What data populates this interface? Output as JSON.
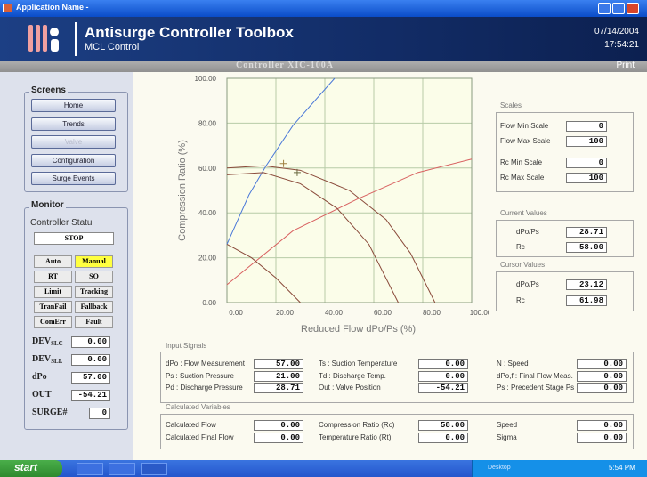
{
  "window": {
    "title": "Application Name -"
  },
  "header": {
    "title": "Antisurge Controller Toolbox",
    "subtitle": "MCL Control",
    "date": "07/14/2004",
    "time": "17:54:21"
  },
  "toolbar": {
    "controller": "Controller  XIC-100A",
    "print": "Print"
  },
  "screens": {
    "title": "Screens",
    "buttons": [
      {
        "label": "Home",
        "enabled": true
      },
      {
        "label": "Trends",
        "enabled": true
      },
      {
        "label": "Valve",
        "enabled": false
      },
      {
        "label": "Configuration",
        "enabled": true
      },
      {
        "label": "Surge Events",
        "enabled": true
      }
    ]
  },
  "monitor": {
    "title": "Monitor",
    "status_label": "Controller Statu",
    "status": "STOP",
    "flags": [
      [
        {
          "label": "Auto",
          "on": false
        },
        {
          "label": "Manual",
          "on": true
        }
      ],
      [
        {
          "label": "RT",
          "on": false
        },
        {
          "label": "SO",
          "on": false
        }
      ],
      [
        {
          "label": "Limit",
          "on": false
        },
        {
          "label": "Tracking",
          "on": false
        }
      ],
      [
        {
          "label": "TranFail",
          "on": false
        },
        {
          "label": "Fallback",
          "on": false
        }
      ],
      [
        {
          "label": "ComErr",
          "on": false
        },
        {
          "label": "Fault",
          "on": false
        }
      ]
    ],
    "readings": [
      {
        "label": "DEV",
        "sub": "SLC",
        "value": "0.00"
      },
      {
        "label": "DEV",
        "sub": "SLL",
        "value": "0.00"
      },
      {
        "label": "dPo",
        "value": "57.00"
      },
      {
        "label": "OUT",
        "value": "-54.21"
      },
      {
        "label": "SURGE#",
        "value": "0"
      }
    ]
  },
  "chart_data": {
    "type": "line",
    "xlabel": "Reduced Flow dPo/Ps (%)",
    "ylabel": "Compression Ratio (%)",
    "xlim": [
      0,
      100
    ],
    "ylim": [
      0,
      100
    ],
    "xticks": [
      {
        "value": 0,
        "label": "0.00"
      },
      {
        "value": 20,
        "label": "20.00"
      },
      {
        "value": 40,
        "label": "40.00"
      },
      {
        "value": 60,
        "label": "60.00"
      },
      {
        "value": 80,
        "label": "80.00"
      },
      {
        "value": 100,
        "label": "100.00"
      }
    ],
    "yticks": [
      {
        "value": 0,
        "label": "0.00"
      },
      {
        "value": 20,
        "label": "20.00"
      },
      {
        "value": 40,
        "label": "40.00"
      },
      {
        "value": 60,
        "label": "60.00"
      },
      {
        "value": 80,
        "label": "80.00"
      },
      {
        "value": 100,
        "label": "100.00"
      }
    ],
    "grid": true,
    "series": [
      {
        "color": "#4a78d8",
        "x": [
          0,
          9,
          16,
          27,
          44
        ],
        "values": [
          26,
          48,
          61,
          79,
          100
        ]
      },
      {
        "color": "#d86060",
        "x": [
          0,
          27,
          53,
          78,
          100
        ],
        "values": [
          8,
          32,
          46,
          58,
          64
        ]
      },
      {
        "color": "#8a4a3a",
        "x": [
          0,
          15,
          30,
          50,
          65,
          75,
          85
        ],
        "values": [
          60,
          61,
          59,
          50,
          37,
          22,
          0
        ]
      },
      {
        "color": "#8a4a3a",
        "x": [
          0,
          15,
          30,
          45,
          58,
          70
        ],
        "values": [
          57,
          58,
          53,
          42,
          26,
          0
        ]
      },
      {
        "color": "#8a4a3a",
        "x": [
          0,
          10,
          20,
          30
        ],
        "values": [
          26,
          20,
          11,
          0
        ]
      }
    ],
    "points": [
      {
        "x": 23.12,
        "y": 61.98,
        "color": "#a08040"
      },
      {
        "x": 28.71,
        "y": 58.0,
        "color": "#6a6a40"
      }
    ]
  },
  "scales": {
    "title": "Scales",
    "rows": [
      [
        "Flow Min Scale",
        "0"
      ],
      [
        "Flow Max Scale",
        "100"
      ],
      [
        "Rc Min Scale",
        "0"
      ],
      [
        "Rc Max Scale",
        "100"
      ]
    ]
  },
  "current": {
    "title": "Current Values",
    "rows": [
      [
        "dPo/Ps",
        "28.71"
      ],
      [
        "Rc",
        "58.00"
      ]
    ]
  },
  "cursor": {
    "title": "Cursor Values",
    "rows": [
      [
        "dPo/Ps",
        "23.12"
      ],
      [
        "Rc",
        "61.98"
      ]
    ]
  },
  "inputs": {
    "title": "Input Signals",
    "rows": [
      [
        [
          "dPo : Flow Measurement",
          "57.00"
        ],
        [
          "Ts : Suction Temperature",
          "0.00"
        ],
        [
          "N : Speed",
          "0.00"
        ]
      ],
      [
        [
          "Ps : Suction Pressure",
          "21.00"
        ],
        [
          "Td : Discharge Temp.",
          "0.00"
        ],
        [
          "dPo,f : Final Flow Meas.",
          "0.00"
        ]
      ],
      [
        [
          "Pd : Discharge Pressure",
          "28.71"
        ],
        [
          "Out : Valve Position",
          "-54.21"
        ],
        [
          "Ps : Precedent Stage Ps",
          "0.00"
        ]
      ]
    ]
  },
  "calculated": {
    "title": "Calculated Variables",
    "rows": [
      [
        [
          "Calculated Flow",
          "0.00"
        ],
        [
          "Compression Ratio (Rc)",
          "58.00"
        ],
        [
          "Speed",
          "0.00"
        ]
      ],
      [
        [
          "Calculated Final Flow",
          "0.00"
        ],
        [
          "Temperature Ratio (Rt)",
          "0.00"
        ],
        [
          "Sigma",
          "0.00"
        ]
      ]
    ]
  },
  "taskbar": {
    "start": "start",
    "tray": "Desktop",
    "clock": "5:54 PM"
  }
}
